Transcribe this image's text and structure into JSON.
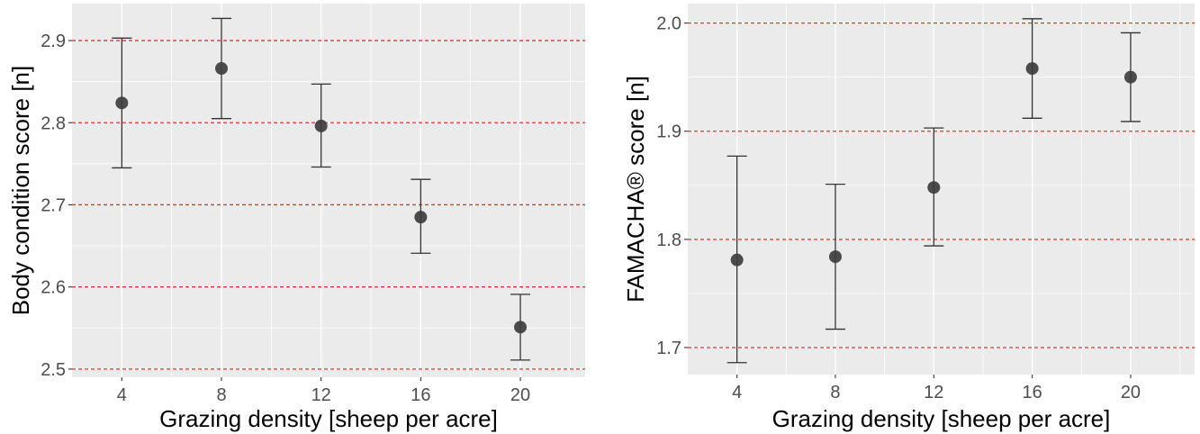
{
  "chart_data": [
    {
      "type": "scatter",
      "title": "",
      "xlabel": "Grazing density [sheep per acre]",
      "ylabel": "Body condition score [n]",
      "x": [
        4,
        8,
        12,
        16,
        20
      ],
      "xticks": [
        "4",
        "8",
        "12",
        "16",
        "20"
      ],
      "xlim": [
        2,
        22.6
      ],
      "ylim": [
        2.49,
        2.945
      ],
      "yticks": [
        "2.5",
        "2.6",
        "2.7",
        "2.8",
        "2.9"
      ],
      "reference_lines_y": [
        2.5,
        2.6,
        2.7,
        2.8,
        2.9
      ],
      "series": [
        {
          "mean": [
            2.824,
            2.866,
            2.796,
            2.685,
            2.551
          ],
          "lower": [
            2.745,
            2.805,
            2.746,
            2.641,
            2.511
          ],
          "upper": [
            2.903,
            2.927,
            2.847,
            2.731,
            2.591
          ]
        }
      ],
      "colors": {
        "panel": "#ebebeb",
        "reference_line": "#e03030",
        "point": "#3d3d3d"
      },
      "grid": true
    },
    {
      "type": "scatter",
      "title": "",
      "xlabel": "Grazing density [sheep per acre]",
      "ylabel": "FAMACHA® score [n]",
      "x": [
        4,
        8,
        12,
        16,
        20
      ],
      "xticks": [
        "4",
        "8",
        "12",
        "16",
        "20"
      ],
      "xlim": [
        2,
        22.6
      ],
      "ylim": [
        1.675,
        2.018
      ],
      "yticks": [
        "1.7",
        "1.8",
        "1.9",
        "2.0"
      ],
      "reference_lines_y": [
        1.7,
        1.8,
        1.9,
        2.0
      ],
      "series": [
        {
          "mean": [
            1.781,
            1.784,
            1.848,
            1.958,
            1.95
          ],
          "lower": [
            1.686,
            1.717,
            1.794,
            1.912,
            1.909
          ],
          "upper": [
            1.877,
            1.851,
            1.903,
            2.004,
            1.991
          ]
        }
      ],
      "colors": {
        "panel": "#ebebeb",
        "reference_line": "#e03030",
        "point": "#3d3d3d"
      },
      "grid": true
    }
  ]
}
